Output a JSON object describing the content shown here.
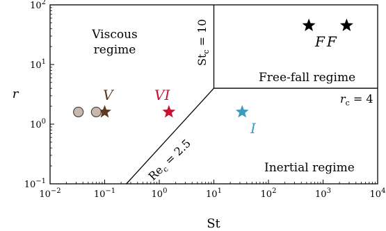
{
  "chart_data": {
    "type": "scatter",
    "xlabel": "St",
    "ylabel": "r",
    "xscale": "log",
    "yscale": "log",
    "xlim": [
      0.01,
      10000
    ],
    "ylim": [
      0.1,
      100
    ],
    "x_ticks": [
      {
        "value": 0.01,
        "base": "10",
        "exp": "−2"
      },
      {
        "value": 0.1,
        "base": "10",
        "exp": "−1"
      },
      {
        "value": 1,
        "base": "10",
        "exp": "0"
      },
      {
        "value": 10,
        "base": "10",
        "exp": "1"
      },
      {
        "value": 100,
        "base": "10",
        "exp": "2"
      },
      {
        "value": 1000,
        "base": "10",
        "exp": "3"
      },
      {
        "value": 10000,
        "base": "10",
        "exp": "4"
      }
    ],
    "y_ticks": [
      {
        "value": 0.1,
        "base": "10",
        "exp": "−1"
      },
      {
        "value": 1,
        "base": "10",
        "exp": "0"
      },
      {
        "value": 10,
        "base": "10",
        "exp": "1"
      },
      {
        "value": 100,
        "base": "10",
        "exp": "2"
      }
    ],
    "grid": false,
    "boundaries": [
      {
        "name": "Stc",
        "points": [
          [
            10,
            4
          ],
          [
            10,
            100
          ]
        ]
      },
      {
        "name": "rc",
        "points": [
          [
            10,
            4
          ],
          [
            10000,
            4
          ]
        ]
      },
      {
        "name": "Rec",
        "points": [
          [
            0.25,
            0.1
          ],
          [
            10,
            4
          ]
        ]
      }
    ],
    "boundary_labels": {
      "stc": {
        "main": "St",
        "sub": "c",
        "rest": " = 10"
      },
      "rc": {
        "main": "r",
        "sub": "c",
        "rest": " = 4"
      },
      "rec": {
        "main": "Re",
        "sub": "c",
        "rest": " = 2.5"
      }
    },
    "regions": {
      "viscous": [
        "Viscous",
        "regime"
      ],
      "freefall": "Free-fall regime",
      "inertial": "Inertial regime"
    },
    "series": [
      {
        "label": "V",
        "marker": "star",
        "color": "#5c3a20",
        "points": [
          [
            0.1,
            1.6
          ]
        ]
      },
      {
        "label": "VI",
        "marker": "star",
        "color": "#c8102e",
        "points": [
          [
            1.5,
            1.6
          ]
        ]
      },
      {
        "label": "I",
        "marker": "star",
        "color": "#3b9bbf",
        "points": [
          [
            33,
            1.6
          ]
        ]
      },
      {
        "label": "FF",
        "marker": "star",
        "color": "#000000",
        "points": [
          [
            550,
            45
          ],
          [
            2700,
            45
          ]
        ]
      },
      {
        "label": "",
        "marker": "circle",
        "color": "#c8b8ae",
        "points": [
          [
            0.033,
            1.6
          ],
          [
            0.07,
            1.6
          ]
        ]
      }
    ]
  }
}
